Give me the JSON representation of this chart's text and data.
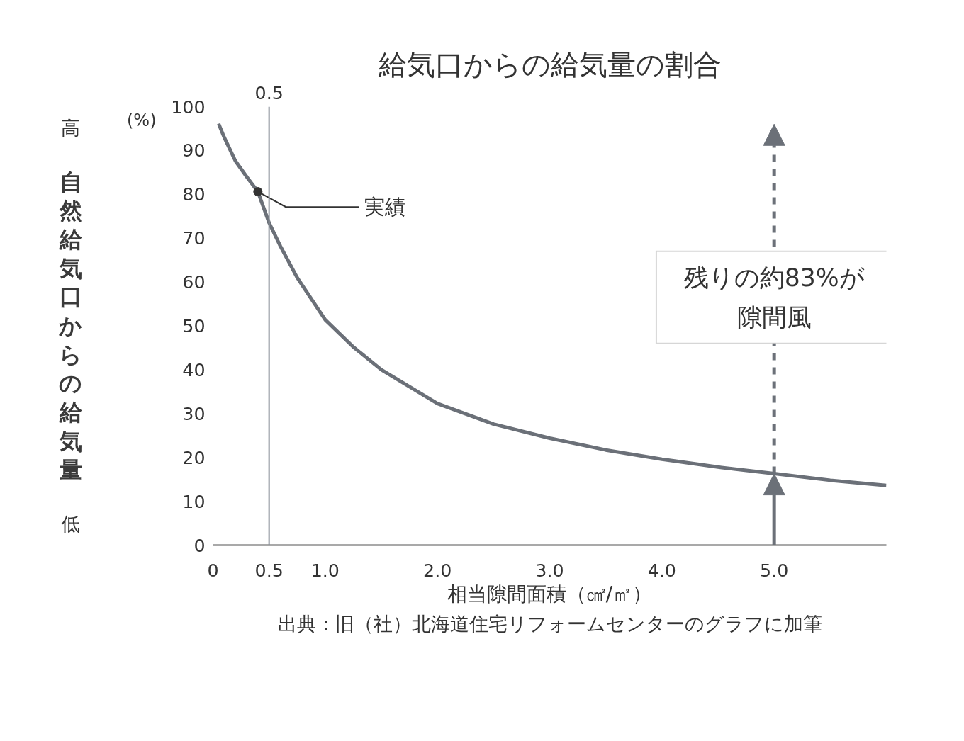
{
  "chart_data": {
    "type": "line",
    "title": "給気口からの給気量の割合",
    "xlabel": "相当隙間面積（㎠/㎡）",
    "ylabel": "自然給気口からの給気量",
    "x": [
      0.05,
      0.1,
      0.2,
      0.3,
      0.4,
      0.5,
      0.6,
      0.75,
      1.0,
      1.25,
      1.5,
      2.0,
      2.5,
      3.0,
      3.5,
      4.0,
      4.5,
      5.0,
      5.5,
      6.0
    ],
    "series": [
      {
        "color": "#6b7078",
        "values": [
          96.1,
          93,
          87.6,
          84,
          80.6,
          73.5,
          68.2,
          61,
          51.4,
          45.2,
          40,
          32.3,
          27.6,
          24.4,
          21.7,
          19.6,
          17.8,
          16.3,
          14.8,
          13.6
        ]
      }
    ],
    "xlim": [
      0,
      6.0
    ],
    "ylim": [
      0,
      100
    ],
    "xticks": [
      0,
      0.5,
      {
        "value": 1,
        "label": "1.0"
      },
      {
        "value": 2,
        "label": "2.0"
      },
      {
        "value": 3,
        "label": "3.0"
      },
      {
        "value": 4,
        "label": "4.0"
      },
      {
        "value": 5,
        "label": "5.0"
      }
    ],
    "yticks": [
      0,
      10,
      20,
      30,
      40,
      50,
      60,
      70,
      80,
      90,
      100
    ],
    "ref_lines": [
      {
        "axis": "x",
        "value": 0.5,
        "label": "0.5",
        "color": "#8a9099"
      }
    ],
    "annotations": [
      "(%)",
      "高",
      "低",
      {
        "text": "実績",
        "x": 0.4,
        "y": 80.6
      },
      "残りの約83%が",
      "隙間風",
      "出典：旧（社）北海道住宅リフォームセンターのグラフに加筆"
    ],
    "grid": false
  }
}
